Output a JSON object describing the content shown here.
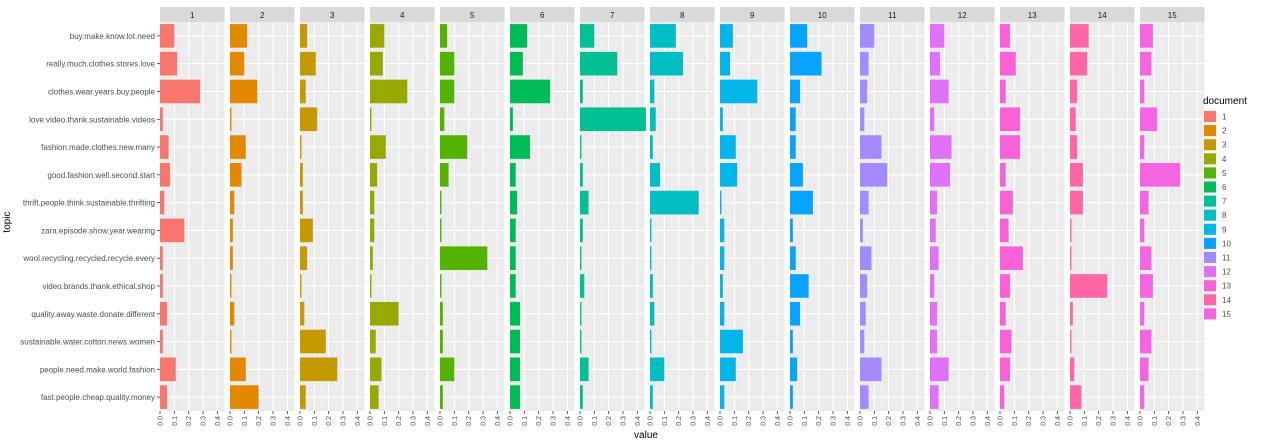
{
  "chart_data": {
    "type": "bar",
    "orientation": "horizontal",
    "facet_by": "document",
    "xlabel": "value",
    "ylabel": "topic",
    "xlim": [
      0,
      0.45
    ],
    "x_ticks": [
      0.0,
      0.1,
      0.2,
      0.3,
      0.4
    ],
    "x_tick_labels": [
      "0.0",
      "0.1",
      "0.2",
      "0.3",
      "0.4"
    ],
    "legend": {
      "title": "document",
      "position": "right"
    },
    "topics": [
      "buy.make.know.lot.need",
      "really.much.clothes.stores.love",
      "clothes.wear.years.buy.people",
      "love.video.thank.sustainable.videos",
      "fashion.made.clothes.new.many",
      "good.fashion.well.second.start",
      "thrift.people.think.sustainable.thrifting",
      "zara.episode.show.year.wearing",
      "wool.recycling.recycled.recycle.every",
      "video.brands.thank.ethical.shop",
      "quality.away.waste.donate.different",
      "sustainable.water.cotton.news.women",
      "people.need.make.world.fashion",
      "fast.people.cheap.quality.money"
    ],
    "series": [
      {
        "name": "1",
        "color": "#F8766D",
        "values": [
          0.1,
          0.12,
          0.28,
          0.02,
          0.06,
          0.07,
          0.03,
          0.17,
          0.02,
          0.02,
          0.05,
          0.02,
          0.11,
          0.05
        ]
      },
      {
        "name": "2",
        "color": "#E38900",
        "values": [
          0.12,
          0.1,
          0.19,
          0.01,
          0.11,
          0.08,
          0.03,
          0.02,
          0.02,
          0.01,
          0.03,
          0.01,
          0.11,
          0.2
        ]
      },
      {
        "name": "3",
        "color": "#C49A00",
        "values": [
          0.05,
          0.11,
          0.04,
          0.12,
          0.01,
          0.02,
          0.02,
          0.09,
          0.05,
          0.01,
          0.03,
          0.18,
          0.26,
          0.04
        ]
      },
      {
        "name": "4",
        "color": "#99A800",
        "values": [
          0.1,
          0.09,
          0.26,
          0.01,
          0.11,
          0.05,
          0.03,
          0.03,
          0.02,
          0.01,
          0.2,
          0.04,
          0.08,
          0.06
        ]
      },
      {
        "name": "5",
        "color": "#53B400",
        "values": [
          0.05,
          0.1,
          0.1,
          0.03,
          0.19,
          0.06,
          0.01,
          0.01,
          0.33,
          0.01,
          0.02,
          0.02,
          0.1,
          0.02
        ]
      },
      {
        "name": "6",
        "color": "#00BC56",
        "values": [
          0.12,
          0.09,
          0.28,
          0.02,
          0.14,
          0.04,
          0.05,
          0.04,
          0.04,
          0.04,
          0.07,
          0.07,
          0.07,
          0.07
        ]
      },
      {
        "name": "7",
        "color": "#00C094",
        "values": [
          0.1,
          0.26,
          0.02,
          0.46,
          0.01,
          0.02,
          0.06,
          0.02,
          0.01,
          0.03,
          0.01,
          0.01,
          0.06,
          0.02
        ]
      },
      {
        "name": "8",
        "color": "#00BFC4",
        "values": [
          0.18,
          0.23,
          0.03,
          0.04,
          0.02,
          0.07,
          0.34,
          0.01,
          0.01,
          0.02,
          0.03,
          0.01,
          0.1,
          0.02
        ]
      },
      {
        "name": "9",
        "color": "#00B6EB",
        "values": [
          0.09,
          0.07,
          0.26,
          0.02,
          0.11,
          0.12,
          0.01,
          0.03,
          0.03,
          0.02,
          0.03,
          0.16,
          0.11,
          0.03
        ]
      },
      {
        "name": "10",
        "color": "#06A4FF",
        "values": [
          0.12,
          0.22,
          0.07,
          0.04,
          0.04,
          0.09,
          0.16,
          0.02,
          0.04,
          0.13,
          0.07,
          0.02,
          0.05,
          0.02
        ]
      },
      {
        "name": "11",
        "color": "#A58AFF",
        "values": [
          0.1,
          0.06,
          0.05,
          0.03,
          0.15,
          0.19,
          0.06,
          0.02,
          0.08,
          0.05,
          0.04,
          0.03,
          0.15,
          0.06
        ]
      },
      {
        "name": "12",
        "color": "#DF70F8",
        "values": [
          0.1,
          0.07,
          0.13,
          0.03,
          0.15,
          0.14,
          0.05,
          0.04,
          0.06,
          0.03,
          0.05,
          0.05,
          0.13,
          0.06
        ]
      },
      {
        "name": "13",
        "color": "#FB61D7",
        "values": [
          0.07,
          0.11,
          0.04,
          0.14,
          0.14,
          0.04,
          0.09,
          0.06,
          0.16,
          0.07,
          0.04,
          0.08,
          0.07,
          0.03
        ]
      },
      {
        "name": "14",
        "color": "#FF66A8",
        "values": [
          0.13,
          0.12,
          0.05,
          0.04,
          0.05,
          0.09,
          0.09,
          0.01,
          0.01,
          0.26,
          0.02,
          0.01,
          0.03,
          0.08
        ]
      },
      {
        "name": "15",
        "color": "#F564E3",
        "values": [
          0.09,
          0.08,
          0.03,
          0.12,
          0.03,
          0.28,
          0.06,
          0.03,
          0.08,
          0.09,
          0.03,
          0.08,
          0.06,
          0.03
        ]
      }
    ]
  }
}
